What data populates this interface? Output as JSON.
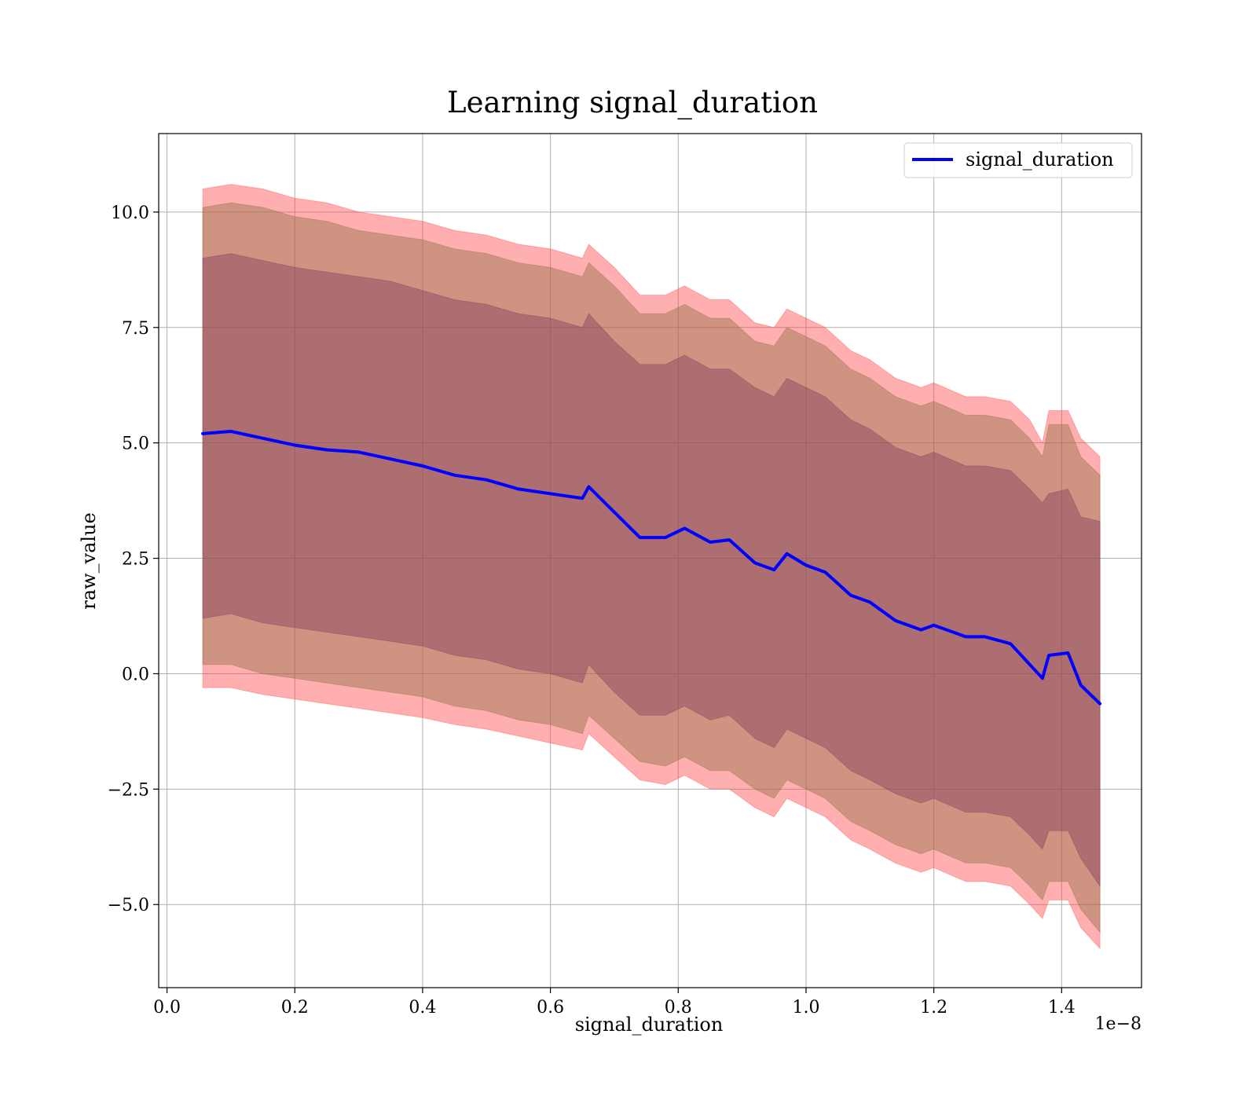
{
  "chart_data": {
    "type": "line",
    "title": "Learning signal_duration",
    "xlabel": "signal_duration",
    "ylabel": "raw_value",
    "x_scale_note": "1e−8",
    "xlim": [
      -0.013,
      1.525
    ],
    "ylim": [
      -6.8,
      11.7
    ],
    "grid": true,
    "legend_position": "top-right",
    "x_ticks": [
      0.0,
      0.2,
      0.4,
      0.6,
      0.8,
      1.0,
      1.2,
      1.4
    ],
    "x_tick_labels": [
      "0.0",
      "0.2",
      "0.4",
      "0.6",
      "0.8",
      "1.0",
      "1.2",
      "1.4"
    ],
    "y_ticks": [
      -5.0,
      -2.5,
      0.0,
      2.5,
      5.0,
      7.5,
      10.0
    ],
    "y_tick_labels": [
      "−5.0",
      "−2.5",
      "0.0",
      "2.5",
      "5.0",
      "7.5",
      "10.0"
    ],
    "series": [
      {
        "name": "signal_duration",
        "color": "#0000ff",
        "x": [
          0.056,
          0.1,
          0.15,
          0.2,
          0.25,
          0.3,
          0.35,
          0.4,
          0.45,
          0.5,
          0.55,
          0.6,
          0.65,
          0.66,
          0.7,
          0.74,
          0.78,
          0.81,
          0.85,
          0.88,
          0.92,
          0.95,
          0.97,
          1.0,
          1.03,
          1.07,
          1.1,
          1.14,
          1.18,
          1.2,
          1.25,
          1.28,
          1.32,
          1.35,
          1.37,
          1.38,
          1.41,
          1.43,
          1.46
        ],
        "y": [
          5.2,
          5.25,
          5.1,
          4.95,
          4.85,
          4.8,
          4.65,
          4.5,
          4.3,
          4.2,
          4.0,
          3.9,
          3.8,
          4.05,
          3.5,
          2.95,
          2.95,
          3.15,
          2.85,
          2.9,
          2.4,
          2.25,
          2.6,
          2.35,
          2.2,
          1.7,
          1.55,
          1.15,
          0.95,
          1.05,
          0.8,
          0.8,
          0.65,
          0.2,
          -0.1,
          0.4,
          0.45,
          -0.25,
          -0.65
        ]
      }
    ],
    "bands": [
      {
        "color": "#ff4040",
        "x": [
          0.056,
          0.1,
          0.15,
          0.2,
          0.25,
          0.3,
          0.35,
          0.4,
          0.45,
          0.5,
          0.55,
          0.6,
          0.65,
          0.66,
          0.7,
          0.74,
          0.78,
          0.81,
          0.85,
          0.88,
          0.92,
          0.95,
          0.97,
          1.0,
          1.03,
          1.07,
          1.1,
          1.14,
          1.18,
          1.2,
          1.25,
          1.28,
          1.32,
          1.35,
          1.37,
          1.38,
          1.41,
          1.43,
          1.46
        ],
        "upper": [
          10.5,
          10.6,
          10.5,
          10.3,
          10.2,
          10.0,
          9.9,
          9.8,
          9.6,
          9.5,
          9.3,
          9.2,
          9.0,
          9.3,
          8.8,
          8.2,
          8.2,
          8.4,
          8.1,
          8.1,
          7.6,
          7.5,
          7.9,
          7.7,
          7.5,
          7.0,
          6.8,
          6.4,
          6.2,
          6.3,
          6.0,
          6.0,
          5.9,
          5.5,
          5.0,
          5.7,
          5.7,
          5.1,
          4.7
        ],
        "lower": [
          -0.3,
          -0.3,
          -0.45,
          -0.55,
          -0.65,
          -0.75,
          -0.85,
          -0.95,
          -1.1,
          -1.2,
          -1.35,
          -1.5,
          -1.65,
          -1.3,
          -1.8,
          -2.3,
          -2.4,
          -2.2,
          -2.5,
          -2.5,
          -2.9,
          -3.1,
          -2.7,
          -2.9,
          -3.1,
          -3.6,
          -3.8,
          -4.1,
          -4.3,
          -4.2,
          -4.5,
          -4.5,
          -4.6,
          -5.0,
          -5.3,
          -4.9,
          -4.9,
          -5.5,
          -5.95
        ]
      },
      {
        "color": "#8c6d45",
        "x": [
          0.056,
          0.1,
          0.15,
          0.2,
          0.25,
          0.3,
          0.35,
          0.4,
          0.45,
          0.5,
          0.55,
          0.6,
          0.65,
          0.66,
          0.7,
          0.74,
          0.78,
          0.81,
          0.85,
          0.88,
          0.92,
          0.95,
          0.97,
          1.0,
          1.03,
          1.07,
          1.1,
          1.14,
          1.18,
          1.2,
          1.25,
          1.28,
          1.32,
          1.35,
          1.37,
          1.38,
          1.41,
          1.43,
          1.46
        ],
        "upper": [
          10.1,
          10.2,
          10.1,
          9.9,
          9.8,
          9.6,
          9.5,
          9.4,
          9.2,
          9.1,
          8.9,
          8.8,
          8.6,
          8.9,
          8.4,
          7.8,
          7.8,
          8.0,
          7.7,
          7.7,
          7.2,
          7.1,
          7.5,
          7.3,
          7.1,
          6.6,
          6.4,
          6.0,
          5.8,
          5.9,
          5.6,
          5.6,
          5.5,
          5.1,
          4.7,
          5.4,
          5.4,
          4.7,
          4.3
        ],
        "lower": [
          0.2,
          0.2,
          0.0,
          -0.1,
          -0.2,
          -0.3,
          -0.4,
          -0.5,
          -0.7,
          -0.8,
          -1.0,
          -1.1,
          -1.3,
          -0.9,
          -1.4,
          -1.9,
          -2.0,
          -1.8,
          -2.1,
          -2.1,
          -2.5,
          -2.7,
          -2.3,
          -2.5,
          -2.7,
          -3.2,
          -3.4,
          -3.7,
          -3.9,
          -3.8,
          -4.1,
          -4.1,
          -4.2,
          -4.6,
          -4.9,
          -4.5,
          -4.5,
          -5.1,
          -5.6
        ]
      },
      {
        "color": "#7d3c5a",
        "x": [
          0.056,
          0.1,
          0.15,
          0.2,
          0.25,
          0.3,
          0.35,
          0.4,
          0.45,
          0.5,
          0.55,
          0.6,
          0.65,
          0.66,
          0.7,
          0.74,
          0.78,
          0.81,
          0.85,
          0.88,
          0.92,
          0.95,
          0.97,
          1.0,
          1.03,
          1.07,
          1.1,
          1.14,
          1.18,
          1.2,
          1.25,
          1.28,
          1.32,
          1.35,
          1.37,
          1.38,
          1.41,
          1.43,
          1.46
        ],
        "upper": [
          9.0,
          9.1,
          8.95,
          8.8,
          8.7,
          8.6,
          8.5,
          8.3,
          8.1,
          8.0,
          7.8,
          7.7,
          7.5,
          7.8,
          7.2,
          6.7,
          6.7,
          6.9,
          6.6,
          6.6,
          6.2,
          6.0,
          6.4,
          6.2,
          6.0,
          5.5,
          5.3,
          4.9,
          4.7,
          4.8,
          4.5,
          4.5,
          4.4,
          4.0,
          3.7,
          3.9,
          4.0,
          3.4,
          3.3
        ],
        "lower": [
          1.2,
          1.3,
          1.1,
          1.0,
          0.9,
          0.8,
          0.7,
          0.6,
          0.4,
          0.3,
          0.1,
          0.0,
          -0.2,
          0.2,
          -0.4,
          -0.9,
          -0.9,
          -0.7,
          -1.0,
          -0.9,
          -1.4,
          -1.6,
          -1.2,
          -1.4,
          -1.6,
          -2.1,
          -2.3,
          -2.6,
          -2.8,
          -2.7,
          -3.0,
          -3.0,
          -3.1,
          -3.5,
          -3.8,
          -3.4,
          -3.4,
          -4.0,
          -4.6
        ]
      }
    ]
  }
}
